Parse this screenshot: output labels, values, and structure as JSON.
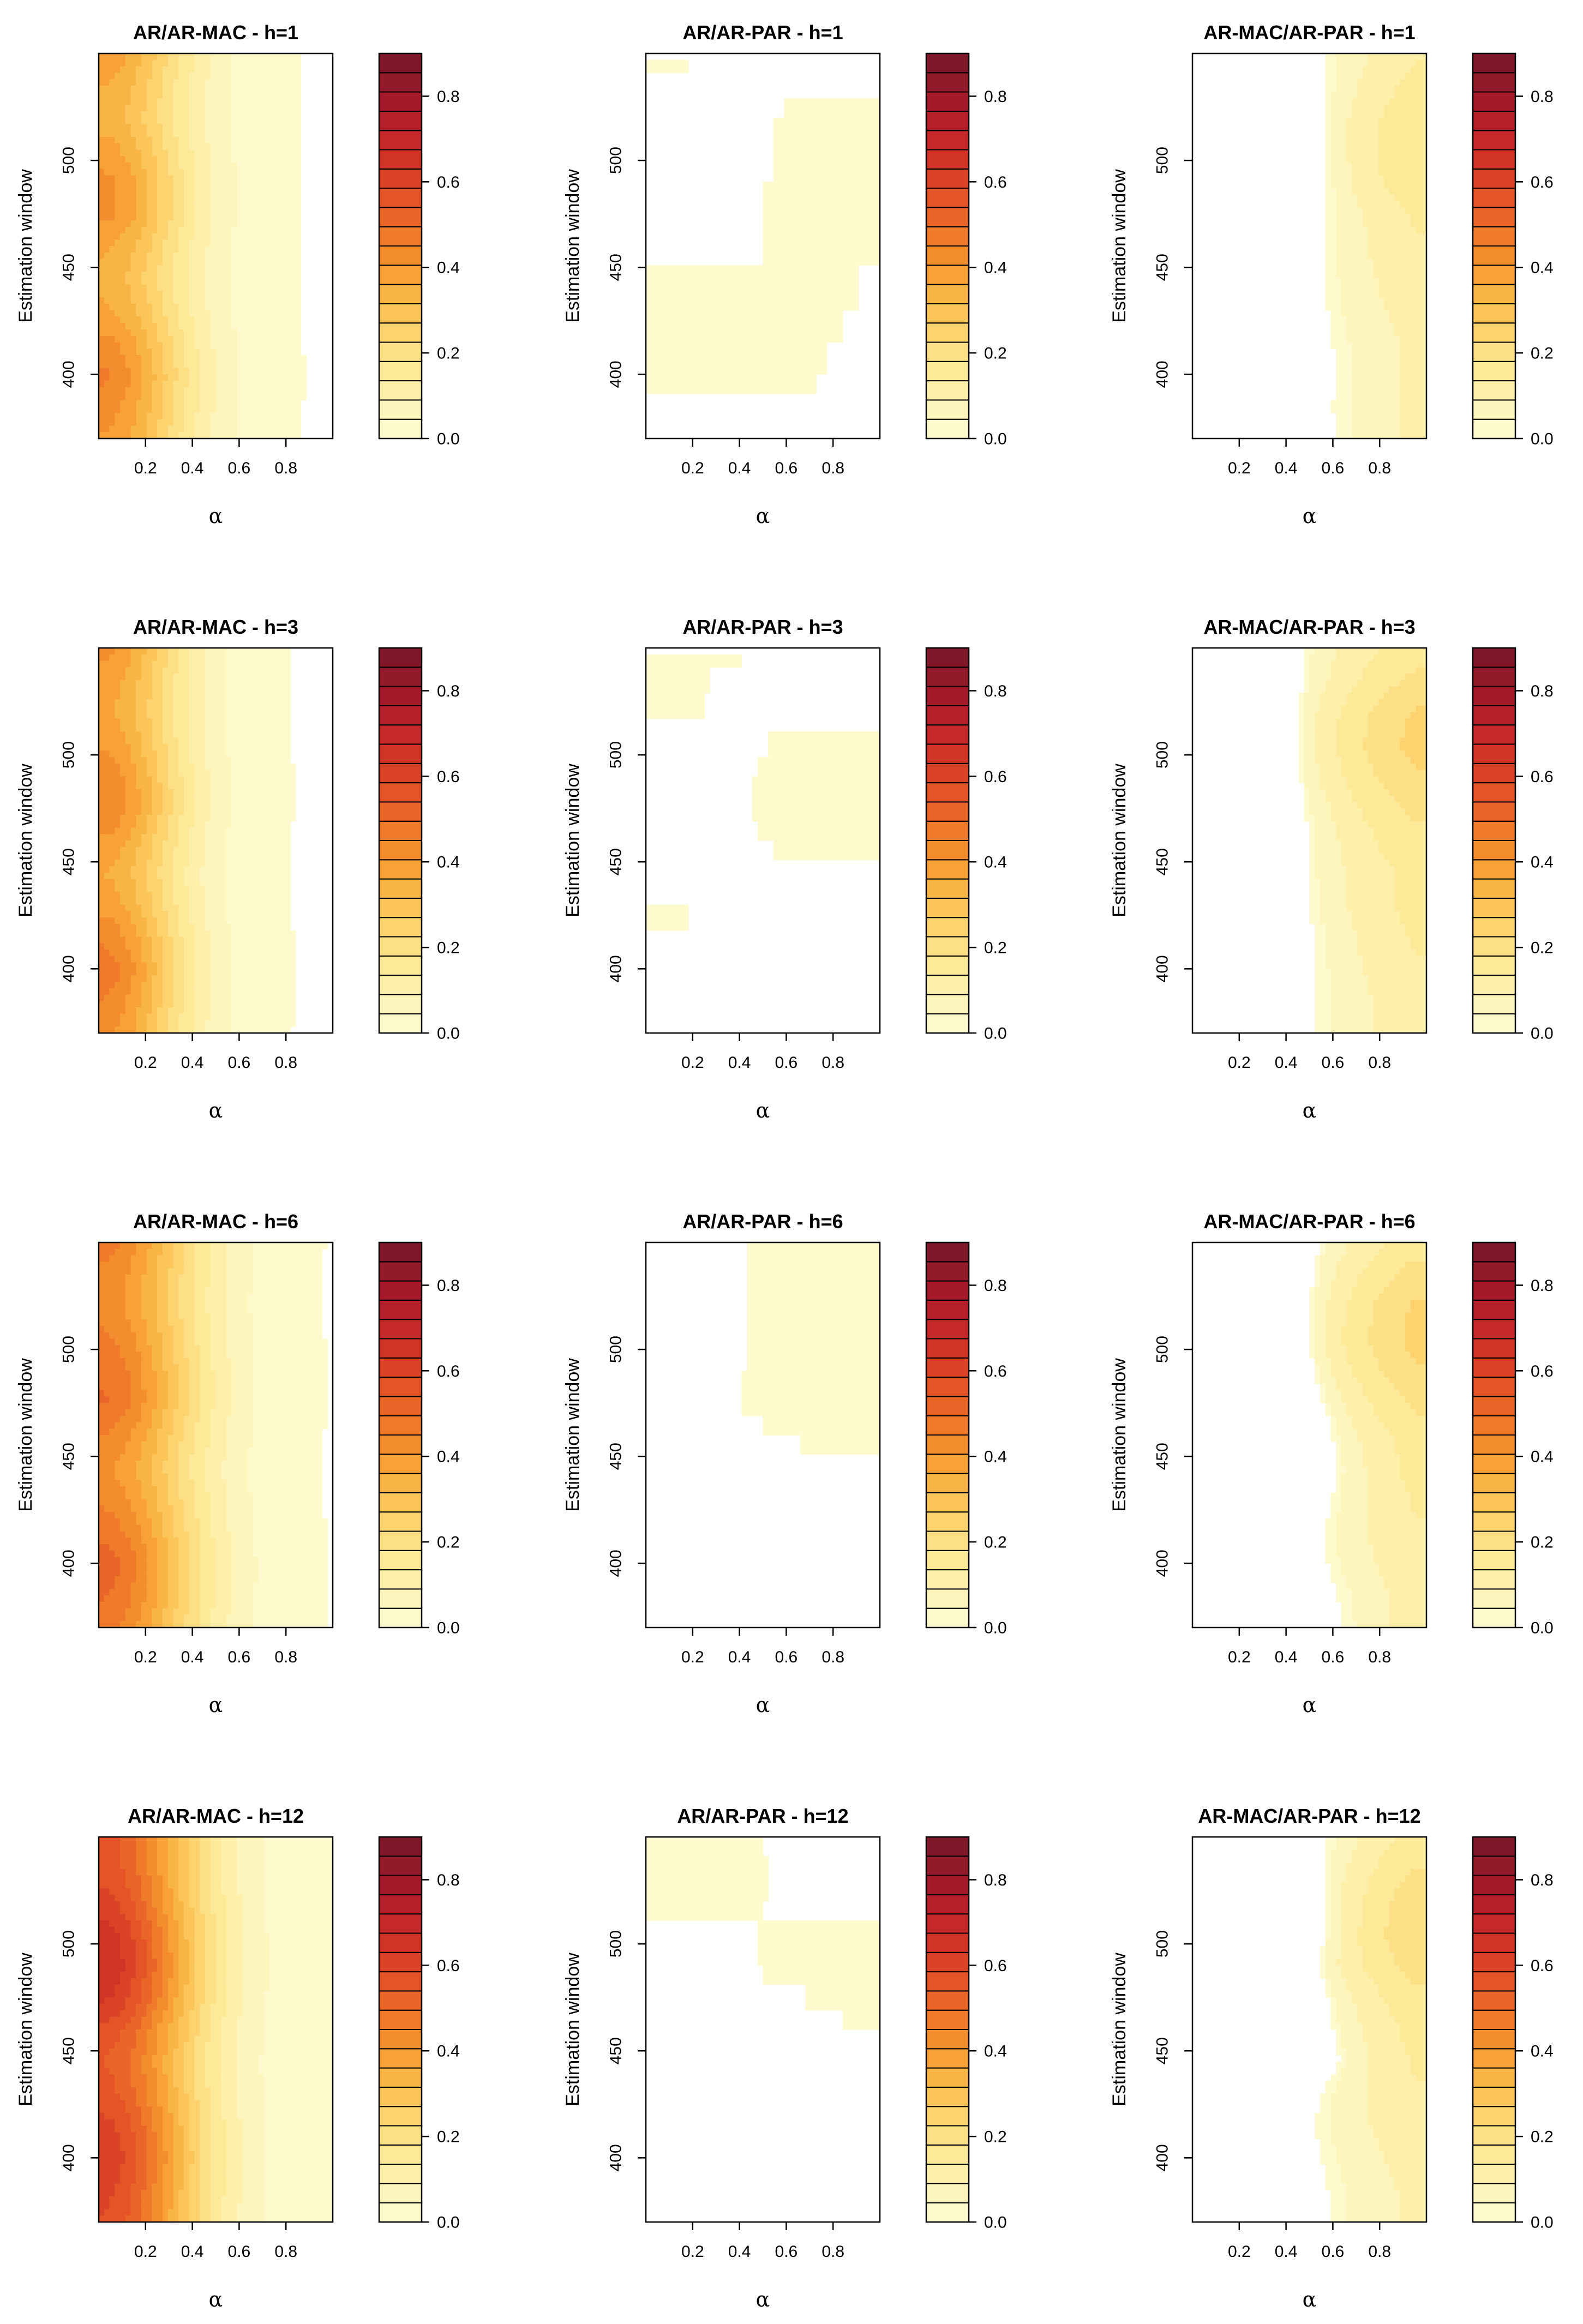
{
  "figure": {
    "row_order": [
      "h=1",
      "h=3",
      "h=6",
      "h=12"
    ],
    "col_order": [
      "AR/AR-MAC",
      "AR/AR-PAR",
      "AR-MAC/AR-PAR"
    ]
  },
  "colors": {
    "background": "#ffffff",
    "frame": "#000000",
    "palette": [
      "#FFFACD",
      "#FEF5BC",
      "#FEEFAA",
      "#FEE999",
      "#FDE086",
      "#FDD36F",
      "#FBC55A",
      "#F9B446",
      "#F7A136",
      "#F38D2D",
      "#EF7A2A",
      "#EA6628",
      "#E45427",
      "#DB4327",
      "#D13427",
      "#C42828",
      "#B51F29",
      "#A41A2A",
      "#921A2B",
      "#7F1729"
    ]
  },
  "chart_data": [
    {
      "type": "heatmap",
      "title": "AR/AR-MAC - h=1",
      "xlabel": "α",
      "ylabel": "Estimation window",
      "xlim": [
        0,
        1
      ],
      "ylim": [
        370,
        550
      ],
      "xticks": [
        "0.2",
        "0.4",
        "0.6",
        "0.8"
      ],
      "yticks": [
        "400",
        "450",
        "500"
      ],
      "colorbar": {
        "range": [
          0,
          0.9
        ],
        "ticks": [
          "0.0",
          "0.2",
          "0.4",
          "0.6",
          "0.8"
        ],
        "levels": 20
      },
      "surface": {
        "kind": "decay",
        "z0": [
          0.4,
          0.43,
          0.46,
          0.42,
          0.37,
          0.34,
          0.37,
          0.42,
          0.42,
          0.38,
          0.34,
          0.36,
          0.4
        ],
        "rate": 6.5
      }
    },
    {
      "type": "heatmap",
      "title": "AR/AR-PAR - h=1",
      "xlabel": "α",
      "ylabel": "Estimation window",
      "xlim": [
        0,
        1
      ],
      "ylim": [
        370,
        550
      ],
      "xticks": [
        "0.2",
        "0.4",
        "0.6",
        "0.8"
      ],
      "yticks": [
        "400",
        "450",
        "500"
      ],
      "colorbar": {
        "range": [
          0,
          0.9
        ],
        "ticks": [
          "0.0",
          "0.2",
          "0.4",
          "0.6",
          "0.8"
        ],
        "levels": 20
      },
      "surface": {
        "kind": "region",
        "level": 0.02,
        "rows": [
          [
            390,
            400,
            0,
            0.73
          ],
          [
            400,
            415,
            0,
            0.78
          ],
          [
            415,
            430,
            0,
            0.85
          ],
          [
            430,
            440,
            0,
            0.9
          ],
          [
            440,
            450,
            0,
            0.9
          ],
          [
            450,
            460,
            0.5,
            1
          ],
          [
            460,
            480,
            0.5,
            1
          ],
          [
            480,
            490,
            0.5,
            1
          ],
          [
            490,
            500,
            0.55,
            1
          ],
          [
            500,
            510,
            0.55,
            1
          ],
          [
            510,
            520,
            0.55,
            1
          ],
          [
            520,
            530,
            0.58,
            1
          ],
          [
            540,
            548,
            0,
            0.18
          ]
        ]
      }
    },
    {
      "type": "heatmap",
      "title": "AR-MAC/AR-PAR - h=1",
      "xlabel": "α",
      "ylabel": "Estimation window",
      "xlim": [
        0,
        1
      ],
      "ylim": [
        370,
        550
      ],
      "xticks": [
        "0.2",
        "0.4",
        "0.6",
        "0.8"
      ],
      "yticks": [
        "400",
        "450",
        "500"
      ],
      "colorbar": {
        "range": [
          0,
          0.9
        ],
        "ticks": [
          "0.0",
          "0.2",
          "0.4",
          "0.6",
          "0.8"
        ],
        "levels": 20
      },
      "surface": {
        "kind": "rise",
        "start": [
          0.61,
          0.6,
          0.61,
          0.6,
          0.58,
          0.57,
          0.57,
          0.58,
          0.57,
          0.57,
          0.56,
          0.57,
          0.58
        ],
        "peak": [
          0.1,
          0.1,
          0.1,
          0.1,
          0.11,
          0.12,
          0.13,
          0.14,
          0.17,
          0.18,
          0.17,
          0.15,
          0.13
        ]
      }
    },
    {
      "type": "heatmap",
      "title": "AR/AR-MAC - h=3",
      "xlabel": "α",
      "ylabel": "Estimation window",
      "xlim": [
        0,
        1
      ],
      "ylim": [
        370,
        550
      ],
      "xticks": [
        "0.2",
        "0.4",
        "0.6",
        "0.8"
      ],
      "yticks": [
        "400",
        "450",
        "500"
      ],
      "colorbar": {
        "range": [
          0,
          0.9
        ],
        "ticks": [
          "0.0",
          "0.2",
          "0.4",
          "0.6",
          "0.8"
        ],
        "levels": 20
      },
      "surface": {
        "kind": "decay",
        "z0": [
          0.42,
          0.45,
          0.48,
          0.44,
          0.39,
          0.36,
          0.4,
          0.45,
          0.44,
          0.4,
          0.37,
          0.39,
          0.42
        ],
        "rate": 7.2
      }
    },
    {
      "type": "heatmap",
      "title": "AR/AR-PAR - h=3",
      "xlabel": "α",
      "ylabel": "Estimation window",
      "xlim": [
        0,
        1
      ],
      "ylim": [
        370,
        550
      ],
      "xticks": [
        "0.2",
        "0.4",
        "0.6",
        "0.8"
      ],
      "yticks": [
        "400",
        "450",
        "500"
      ],
      "colorbar": {
        "range": [
          0,
          0.9
        ],
        "ticks": [
          "0.0",
          "0.2",
          "0.4",
          "0.6",
          "0.8"
        ],
        "levels": 20
      },
      "surface": {
        "kind": "region",
        "level": 0.02,
        "rows": [
          [
            418,
            430,
            0,
            0.18
          ],
          [
            450,
            460,
            0.55,
            1
          ],
          [
            460,
            470,
            0.47,
            1
          ],
          [
            470,
            480,
            0.45,
            1
          ],
          [
            480,
            490,
            0.45,
            1
          ],
          [
            490,
            500,
            0.47,
            1
          ],
          [
            500,
            510,
            0.52,
            1
          ],
          [
            518,
            530,
            0,
            0.26
          ],
          [
            530,
            540,
            0,
            0.28
          ],
          [
            540,
            548,
            0,
            0.4
          ]
        ]
      }
    },
    {
      "type": "heatmap",
      "title": "AR-MAC/AR-PAR - h=3",
      "xlabel": "α",
      "ylabel": "Estimation window",
      "xlim": [
        0,
        1
      ],
      "ylim": [
        370,
        550
      ],
      "xticks": [
        "0.2",
        "0.4",
        "0.6",
        "0.8"
      ],
      "yticks": [
        "400",
        "450",
        "500"
      ],
      "colorbar": {
        "range": [
          0,
          0.9
        ],
        "ticks": [
          "0.0",
          "0.2",
          "0.4",
          "0.6",
          "0.8"
        ],
        "levels": 20
      },
      "surface": {
        "kind": "rise",
        "start": [
          0.52,
          0.53,
          0.53,
          0.52,
          0.5,
          0.49,
          0.5,
          0.48,
          0.46,
          0.45,
          0.46,
          0.47,
          0.48
        ],
        "peak": [
          0.12,
          0.12,
          0.13,
          0.14,
          0.15,
          0.15,
          0.17,
          0.19,
          0.22,
          0.24,
          0.23,
          0.19,
          0.16
        ]
      }
    },
    {
      "type": "heatmap",
      "title": "AR/AR-MAC - h=6",
      "xlabel": "α",
      "ylabel": "Estimation window",
      "xlim": [
        0,
        1
      ],
      "ylim": [
        370,
        550
      ],
      "xticks": [
        "0.2",
        "0.4",
        "0.6",
        "0.8"
      ],
      "yticks": [
        "400",
        "450",
        "500"
      ],
      "colorbar": {
        "range": [
          0,
          0.9
        ],
        "ticks": [
          "0.0",
          "0.2",
          "0.4",
          "0.6",
          "0.8"
        ],
        "levels": 20
      },
      "surface": {
        "kind": "decay",
        "z0": [
          0.47,
          0.5,
          0.52,
          0.48,
          0.44,
          0.41,
          0.45,
          0.5,
          0.49,
          0.46,
          0.43,
          0.44,
          0.47
        ],
        "rate": 5.4
      }
    },
    {
      "type": "heatmap",
      "title": "AR/AR-PAR - h=6",
      "xlabel": "α",
      "ylabel": "Estimation window",
      "xlim": [
        0,
        1
      ],
      "ylim": [
        370,
        550
      ],
      "xticks": [
        "0.2",
        "0.4",
        "0.6",
        "0.8"
      ],
      "yticks": [
        "400",
        "450",
        "500"
      ],
      "colorbar": {
        "range": [
          0,
          0.9
        ],
        "ticks": [
          "0.0",
          "0.2",
          "0.4",
          "0.6",
          "0.8"
        ],
        "levels": 20
      },
      "surface": {
        "kind": "region",
        "level": 0.02,
        "rows": [
          [
            450,
            460,
            0.66,
            1
          ],
          [
            460,
            470,
            0.5,
            1
          ],
          [
            470,
            480,
            0.4,
            1
          ],
          [
            480,
            490,
            0.42,
            1
          ],
          [
            490,
            500,
            0.44,
            1
          ],
          [
            500,
            510,
            0.44,
            1
          ],
          [
            510,
            520,
            0.44,
            1
          ],
          [
            520,
            530,
            0.44,
            1
          ],
          [
            530,
            540,
            0.44,
            1
          ],
          [
            540,
            550,
            0.44,
            1
          ]
        ]
      }
    },
    {
      "type": "heatmap",
      "title": "AR-MAC/AR-PAR - h=6",
      "xlabel": "α",
      "ylabel": "Estimation window",
      "xlim": [
        0,
        1
      ],
      "ylim": [
        370,
        550
      ],
      "xticks": [
        "0.2",
        "0.4",
        "0.6",
        "0.8"
      ],
      "yticks": [
        "400",
        "450",
        "500"
      ],
      "colorbar": {
        "range": [
          0,
          0.9
        ],
        "ticks": [
          "0.0",
          "0.2",
          "0.4",
          "0.6",
          "0.8"
        ],
        "levels": 20
      },
      "surface": {
        "kind": "rise",
        "start": [
          0.65,
          0.62,
          0.58,
          0.56,
          0.6,
          0.62,
          0.6,
          0.56,
          0.52,
          0.5,
          0.5,
          0.52,
          0.54
        ],
        "peak": [
          0.11,
          0.11,
          0.12,
          0.13,
          0.14,
          0.15,
          0.16,
          0.19,
          0.22,
          0.24,
          0.23,
          0.2,
          0.16
        ]
      }
    },
    {
      "type": "heatmap",
      "title": "AR/AR-MAC - h=12",
      "xlabel": "α",
      "ylabel": "Estimation window",
      "xlim": [
        0,
        1
      ],
      "ylim": [
        370,
        550
      ],
      "xticks": [
        "0.2",
        "0.4",
        "0.6",
        "0.8"
      ],
      "yticks": [
        "400",
        "450",
        "500"
      ],
      "colorbar": {
        "range": [
          0,
          0.9
        ],
        "ticks": [
          "0.0",
          "0.2",
          "0.4",
          "0.6",
          "0.8"
        ],
        "levels": 20
      },
      "surface": {
        "kind": "decay",
        "z0": [
          0.58,
          0.6,
          0.62,
          0.6,
          0.56,
          0.54,
          0.57,
          0.64,
          0.67,
          0.65,
          0.6,
          0.57,
          0.57
        ],
        "rate": 5.2
      }
    },
    {
      "type": "heatmap",
      "title": "AR/AR-PAR - h=12",
      "xlabel": "α",
      "ylabel": "Estimation window",
      "xlim": [
        0,
        1
      ],
      "ylim": [
        370,
        550
      ],
      "xticks": [
        "0.2",
        "0.4",
        "0.6",
        "0.8"
      ],
      "yticks": [
        "400",
        "450",
        "500"
      ],
      "colorbar": {
        "range": [
          0,
          0.9
        ],
        "ticks": [
          "0.0",
          "0.2",
          "0.4",
          "0.6",
          "0.8"
        ],
        "levels": 20
      },
      "surface": {
        "kind": "region",
        "level": 0.02,
        "rows": [
          [
            460,
            470,
            0.85,
            1
          ],
          [
            470,
            480,
            0.68,
            1
          ],
          [
            480,
            490,
            0.5,
            1
          ],
          [
            490,
            500,
            0.48,
            1
          ],
          [
            500,
            510,
            0.48,
            1
          ],
          [
            510,
            520,
            0,
            0.5
          ],
          [
            520,
            530,
            0,
            0.52
          ],
          [
            530,
            540,
            0,
            0.52
          ],
          [
            540,
            550,
            0,
            0.5
          ]
        ]
      }
    },
    {
      "type": "heatmap",
      "title": "AR-MAC/AR-PAR - h=12",
      "xlabel": "α",
      "ylabel": "Estimation window",
      "xlim": [
        0,
        1
      ],
      "ylim": [
        370,
        550
      ],
      "xticks": [
        "0.2",
        "0.4",
        "0.6",
        "0.8"
      ],
      "yticks": [
        "400",
        "450",
        "500"
      ],
      "colorbar": {
        "range": [
          0,
          0.9
        ],
        "ticks": [
          "0.0",
          "0.2",
          "0.4",
          "0.6",
          "0.8"
        ],
        "levels": 20
      },
      "surface": {
        "kind": "rise",
        "start": [
          0.6,
          0.58,
          0.55,
          0.52,
          0.55,
          0.63,
          0.6,
          0.58,
          0.54,
          0.57,
          0.57,
          0.56,
          0.58
        ],
        "peak": [
          0.1,
          0.1,
          0.11,
          0.12,
          0.13,
          0.14,
          0.15,
          0.17,
          0.2,
          0.22,
          0.21,
          0.18,
          0.15
        ]
      }
    }
  ]
}
